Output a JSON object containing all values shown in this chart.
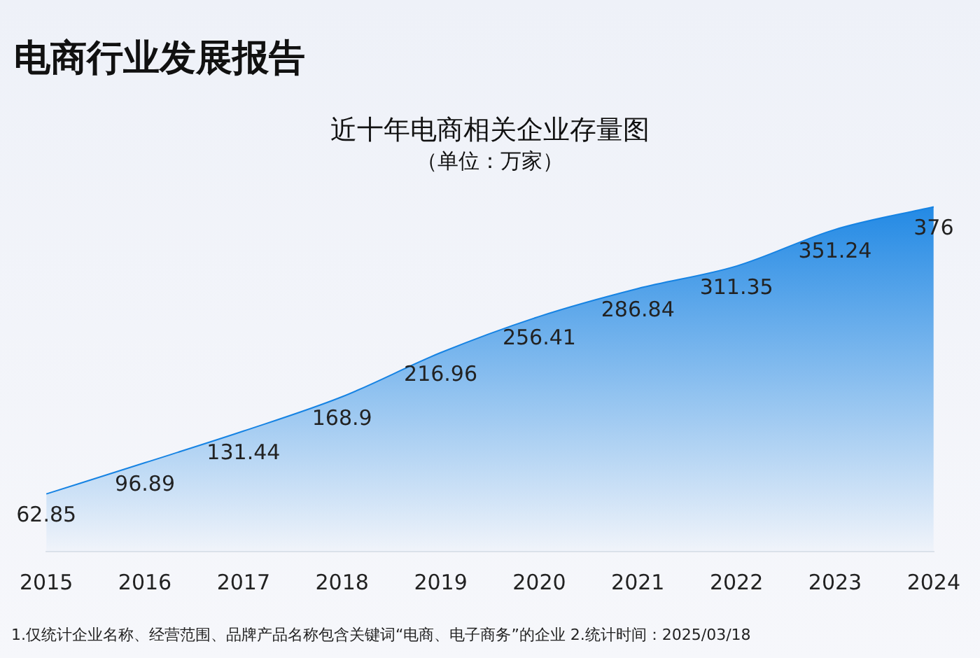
{
  "chart_data": {
    "type": "area",
    "title": "电商行业发展报告",
    "subtitle": "近十年电商相关企业存量图",
    "annotations": [
      "（单位：万家）",
      "1.仅统计企业名称、经营范围、品牌产品名称包含关键词“电商、电子商务”的企业   2.统计时间：2025/03/18"
    ],
    "categories": [
      "2015",
      "2016",
      "2017",
      "2018",
      "2019",
      "2020",
      "2021",
      "2022",
      "2023",
      "2024"
    ],
    "series": [
      {
        "color": "#1683e3",
        "values": [
          62.85,
          96.89,
          131.44,
          168.9,
          216.96,
          256.41,
          286.84,
          311.35,
          351.24,
          376
        ]
      }
    ],
    "data_labels": true,
    "grid": false,
    "legend": false
  }
}
